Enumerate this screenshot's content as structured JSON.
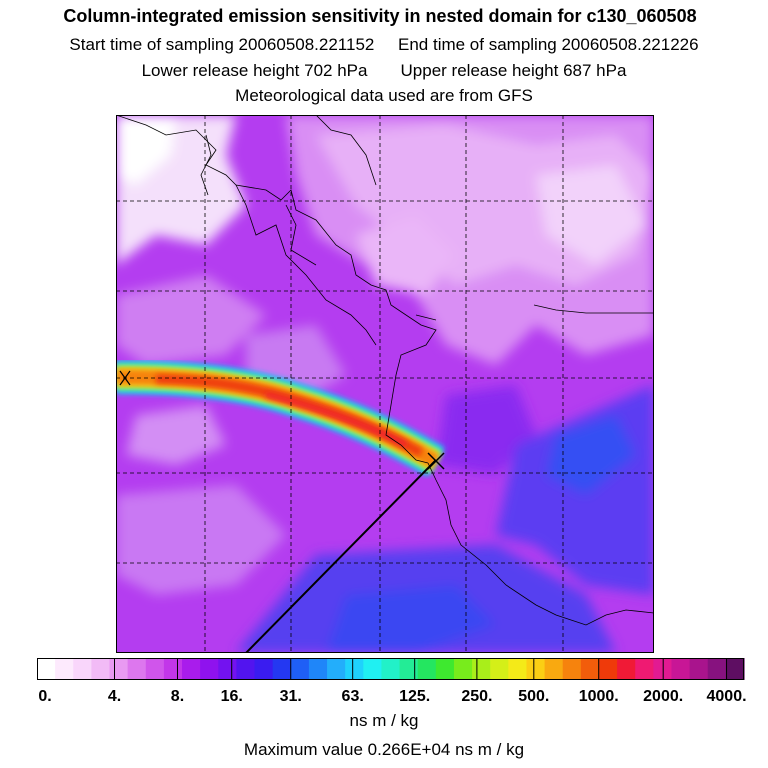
{
  "header": {
    "title": "Column-integrated emission sensitivity in nested domain for c130_060508",
    "start_label": "Start time of sampling 20060508.221152",
    "end_label": "End time of sampling 20060508.221226",
    "lower_label": "Lower release height  702 hPa",
    "upper_label": "Upper release height  687 hPa",
    "met_label": "Meteorological data used are from GFS"
  },
  "colorbar": {
    "unit": "ns m / kg",
    "max_label": "Maximum value  0.266E+04 ns m / kg",
    "colors": [
      "#ffffff",
      "#fdeafd",
      "#f9d6fb",
      "#f2bbf6",
      "#e99af2",
      "#dd77ee",
      "#d055eb",
      "#c236e9",
      "#a91cec",
      "#8f12ee",
      "#7312f0",
      "#5214ef",
      "#3a1cf0",
      "#2438f2",
      "#1f5ff6",
      "#1f86f9",
      "#23aefb",
      "#1fd2fc",
      "#20f0f2",
      "#22f1c8",
      "#23ec96",
      "#24e660",
      "#3ee92f",
      "#78ec1c",
      "#a9ee1a",
      "#d4ef18",
      "#f4ea18",
      "#fbcf14",
      "#f9a910",
      "#f6830d",
      "#f25d0b",
      "#ef3a0a",
      "#f01a36",
      "#ef1a72",
      "#e21a92",
      "#c81696",
      "#a9148d",
      "#87127f",
      "#5e0e62"
    ],
    "ticks": [
      {
        "label": "0.",
        "frac": 0.0
      },
      {
        "label": "4.",
        "frac": 0.1096
      },
      {
        "label": "8.",
        "frac": 0.1987
      },
      {
        "label": "16.",
        "frac": 0.2754
      },
      {
        "label": "31.",
        "frac": 0.3589
      },
      {
        "label": "63.",
        "frac": 0.4465
      },
      {
        "label": "125.",
        "frac": 0.5342
      },
      {
        "label": "250.",
        "frac": 0.6222
      },
      {
        "label": "500.",
        "frac": 0.7027
      },
      {
        "label": "1000.",
        "frac": 0.7945
      },
      {
        "label": "2000.",
        "frac": 0.8857
      },
      {
        "label": "4000.",
        "frac": 0.9753
      }
    ]
  },
  "chart_data": {
    "type": "heatmap",
    "title": "Column-integrated emission sensitivity in nested domain for c130_060508",
    "unit": "ns m / kg",
    "color_scale_levels": [
      0,
      4,
      8,
      16,
      31,
      63,
      125,
      250,
      500,
      1000,
      2000,
      4000
    ],
    "maximum_value": 2660,
    "release": {
      "lower_hPa": 702,
      "upper_hPa": 687
    },
    "met_data": "GFS",
    "map_frac": {
      "plume_path": [
        [
          0.0,
          0.505
        ],
        [
          0.3,
          0.55
        ],
        [
          0.45,
          0.6
        ],
        [
          0.595,
          0.64
        ]
      ],
      "receptor": [
        0.595,
        0.64
      ],
      "flight_track": [
        [
          0.595,
          0.64
        ],
        [
          0.24,
          1.0
        ]
      ],
      "grid_x": [
        0.165,
        0.325,
        0.49,
        0.65,
        0.83
      ],
      "grid_y": [
        0.165,
        0.325,
        0.49,
        0.65,
        0.83
      ]
    }
  }
}
